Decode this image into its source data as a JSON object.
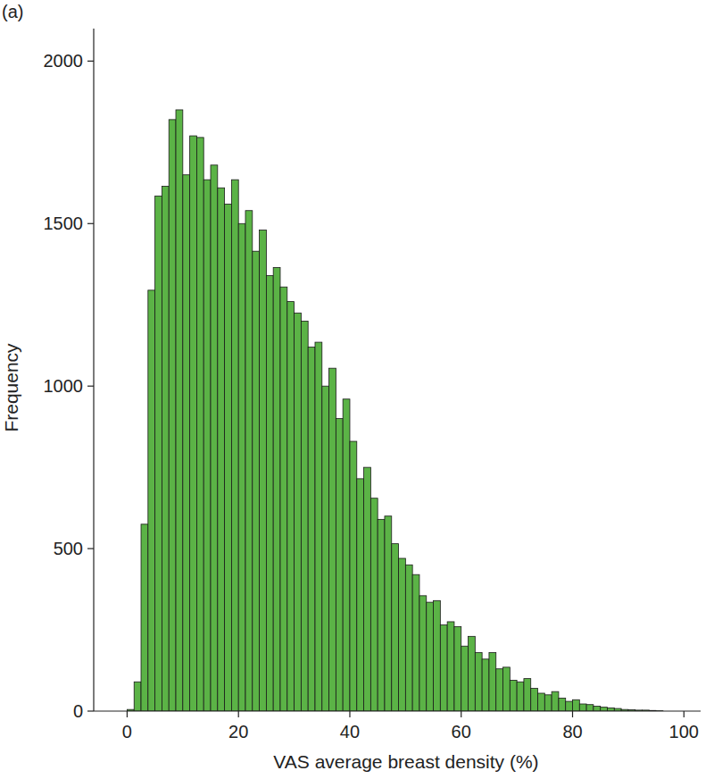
{
  "chart_data": {
    "type": "histogram",
    "title": "(a)",
    "x_label": "VAS average breast density (%)",
    "y_label": "Frequency",
    "bins": [
      0,
      1.25,
      2.5,
      3.75,
      5,
      6.25,
      7.5,
      8.75,
      10,
      11.25,
      12.5,
      13.75,
      15,
      16.25,
      17.5,
      18.75,
      20,
      21.25,
      22.5,
      23.75,
      25,
      26.25,
      27.5,
      28.75,
      30,
      31.25,
      32.5,
      33.75,
      35,
      36.25,
      37.5,
      38.75,
      40,
      41.25,
      42.5,
      43.75,
      45,
      46.25,
      47.5,
      48.75,
      50,
      51.25,
      52.5,
      53.75,
      55,
      56.25,
      57.5,
      58.75,
      60,
      61.25,
      62.5,
      63.75,
      65,
      66.25,
      67.5,
      68.75,
      70,
      71.25,
      72.5,
      73.75,
      75,
      76.25,
      77.5,
      78.75,
      80,
      81.25,
      82.5,
      83.75,
      85,
      86.25,
      87.5,
      88.75,
      90,
      91.25,
      92.5,
      93.75,
      95,
      96.25,
      97.5,
      98.75,
      100
    ],
    "values": [
      5,
      90,
      575,
      1295,
      1585,
      1615,
      1820,
      1850,
      1650,
      1770,
      1765,
      1635,
      1680,
      1610,
      1560,
      1635,
      1500,
      1540,
      1415,
      1480,
      1340,
      1365,
      1305,
      1260,
      1225,
      1200,
      1120,
      1135,
      1000,
      1055,
      900,
      960,
      830,
      715,
      750,
      655,
      590,
      600,
      515,
      470,
      450,
      420,
      355,
      335,
      340,
      265,
      275,
      260,
      200,
      230,
      180,
      160,
      180,
      130,
      135,
      95,
      90,
      100,
      70,
      55,
      50,
      60,
      40,
      30,
      35,
      22,
      20,
      15,
      12,
      10,
      8,
      5,
      4,
      3,
      3,
      2,
      1,
      0,
      0,
      0
    ],
    "color": "#5bb346",
    "xlim": [
      -6,
      103
    ],
    "xticks": [
      0,
      20,
      40,
      60,
      80,
      100
    ],
    "ylim": [
      0,
      2100
    ],
    "yticks": [
      0,
      500,
      1000,
      1500,
      2000
    ]
  }
}
